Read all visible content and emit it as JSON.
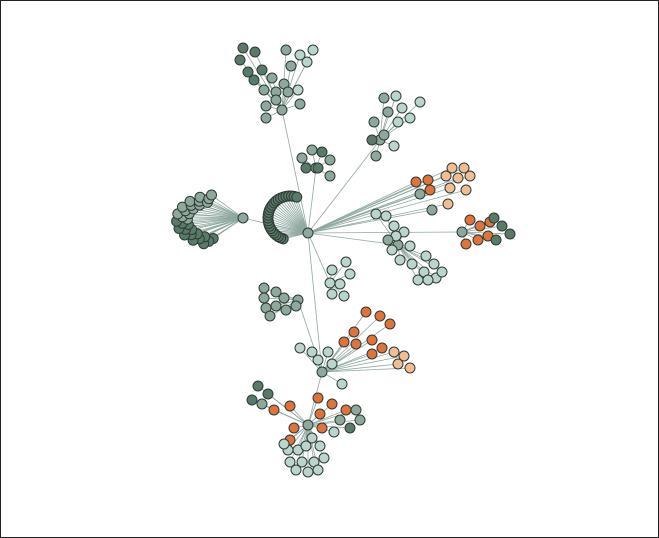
{
  "graph": {
    "description_visible_text": "",
    "edge_color": "#8fa8a0",
    "node_stroke": "#2e3b35",
    "palette": {
      "dark_green": "#5a7a68",
      "mid_green": "#8fa89c",
      "light_green": "#bcd5cc",
      "orange": "#e0733a",
      "peach": "#f2bd92"
    }
  }
}
